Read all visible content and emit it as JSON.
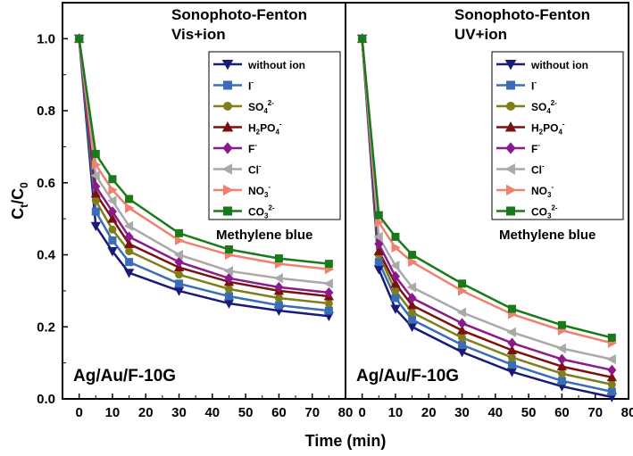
{
  "chart_data": {
    "type": "line",
    "xlabel": "Time (min)",
    "ylabel": "Ct/C0",
    "ylabel_parts": [
      "C",
      "t",
      "/C",
      "0"
    ],
    "xlim": [
      -5,
      80
    ],
    "ylim": [
      0,
      1.1
    ],
    "xticks": [
      0,
      10,
      20,
      30,
      40,
      50,
      60,
      70,
      80
    ],
    "yticks": [
      0.0,
      0.2,
      0.4,
      0.6,
      0.8,
      1.0
    ],
    "x": [
      0,
      5,
      10,
      15,
      30,
      45,
      60,
      75
    ],
    "legend_entries": [
      {
        "base": "without ion",
        "sup": "",
        "color": "#1a1a7a",
        "marker": "tri-down"
      },
      {
        "base": "I",
        "sup": "-",
        "color": "#3a6db5",
        "marker": "square"
      },
      {
        "base": "SO4",
        "sup": "2-",
        "sub": "4",
        "color": "#7f7f1a",
        "marker": "circle"
      },
      {
        "base": "H2PO4",
        "sup": "-",
        "color": "#7a1010",
        "marker": "tri-up"
      },
      {
        "base": "F",
        "sup": "-",
        "color": "#8b1a8b",
        "marker": "diamond"
      },
      {
        "base": "Cl",
        "sup": "-",
        "color": "#a9a9a9",
        "marker": "tri-left"
      },
      {
        "base": "NO3",
        "sup": "-",
        "color": "#f08070",
        "marker": "tri-right"
      },
      {
        "base": "CO3",
        "sup": "2-",
        "color": "#1a7a1a",
        "marker": "square"
      }
    ],
    "panels": [
      {
        "title_line1": "Sonophoto-Fenton",
        "title_line2": "Vis+ion",
        "dye": "Methylene blue",
        "catalyst": "Ag/Au/F-10G",
        "series": [
          {
            "values": [
              1.0,
              0.48,
              0.41,
              0.35,
              0.3,
              0.265,
              0.245,
              0.23
            ]
          },
          {
            "values": [
              1.0,
              0.52,
              0.44,
              0.38,
              0.32,
              0.285,
              0.26,
              0.245
            ]
          },
          {
            "values": [
              1.0,
              0.55,
              0.47,
              0.41,
              0.345,
              0.305,
              0.28,
              0.265
            ]
          },
          {
            "values": [
              1.0,
              0.57,
              0.5,
              0.43,
              0.365,
              0.325,
              0.3,
              0.285
            ]
          },
          {
            "values": [
              1.0,
              0.59,
              0.52,
              0.45,
              0.38,
              0.335,
              0.31,
              0.295
            ]
          },
          {
            "values": [
              1.0,
              0.62,
              0.55,
              0.48,
              0.4,
              0.355,
              0.335,
              0.32
            ]
          },
          {
            "values": [
              1.0,
              0.65,
              0.58,
              0.53,
              0.44,
              0.4,
              0.375,
              0.36
            ]
          },
          {
            "values": [
              1.0,
              0.68,
              0.61,
              0.555,
              0.46,
              0.415,
              0.39,
              0.375
            ]
          }
        ]
      },
      {
        "title_line1": "Sonophoto-Fenton",
        "title_line2": "UV+ion",
        "dye": "Methylene blue",
        "catalyst": "Ag/Au/F-10G",
        "series": [
          {
            "values": [
              1.0,
              0.36,
              0.25,
              0.2,
              0.13,
              0.075,
              0.035,
              0.005
            ]
          },
          {
            "values": [
              1.0,
              0.38,
              0.28,
              0.22,
              0.15,
              0.095,
              0.05,
              0.02
            ]
          },
          {
            "values": [
              1.0,
              0.4,
              0.3,
              0.24,
              0.17,
              0.115,
              0.07,
              0.04
            ]
          },
          {
            "values": [
              1.0,
              0.41,
              0.32,
              0.26,
              0.19,
              0.135,
              0.09,
              0.06
            ]
          },
          {
            "values": [
              1.0,
              0.43,
              0.34,
              0.28,
              0.21,
              0.155,
              0.11,
              0.08
            ]
          },
          {
            "values": [
              1.0,
              0.45,
              0.37,
              0.31,
              0.24,
              0.185,
              0.14,
              0.11
            ]
          },
          {
            "values": [
              1.0,
              0.49,
              0.42,
              0.38,
              0.3,
              0.235,
              0.19,
              0.155
            ]
          },
          {
            "values": [
              1.0,
              0.51,
              0.45,
              0.4,
              0.32,
              0.25,
              0.205,
              0.17
            ]
          }
        ]
      }
    ]
  }
}
